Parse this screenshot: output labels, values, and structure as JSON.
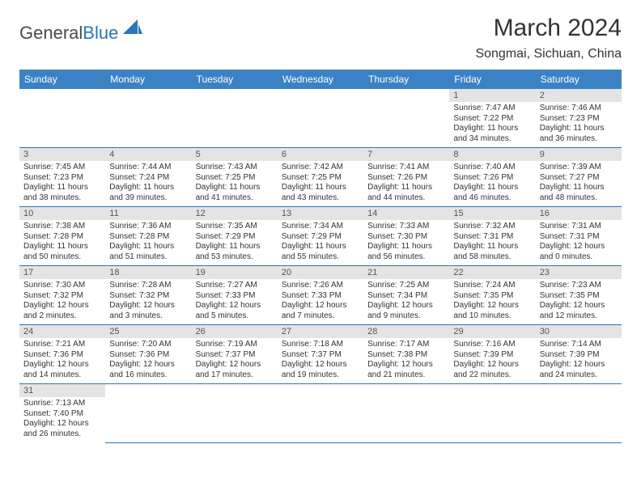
{
  "logo": {
    "part1": "General",
    "part2": "Blue",
    "shape_color": "#2a75bb"
  },
  "title": "March 2024",
  "location": "Songmai, Sichuan, China",
  "header_bg": "#3b82c4",
  "grid_line": "#2a75bb",
  "daynum_bg": "#e4e4e4",
  "weekdays": [
    "Sunday",
    "Monday",
    "Tuesday",
    "Wednesday",
    "Thursday",
    "Friday",
    "Saturday"
  ],
  "weeks": [
    [
      null,
      null,
      null,
      null,
      null,
      {
        "n": "1",
        "sr": "7:47 AM",
        "ss": "7:22 PM",
        "dl": "11 hours and 34 minutes."
      },
      {
        "n": "2",
        "sr": "7:46 AM",
        "ss": "7:23 PM",
        "dl": "11 hours and 36 minutes."
      }
    ],
    [
      {
        "n": "3",
        "sr": "7:45 AM",
        "ss": "7:23 PM",
        "dl": "11 hours and 38 minutes."
      },
      {
        "n": "4",
        "sr": "7:44 AM",
        "ss": "7:24 PM",
        "dl": "11 hours and 39 minutes."
      },
      {
        "n": "5",
        "sr": "7:43 AM",
        "ss": "7:25 PM",
        "dl": "11 hours and 41 minutes."
      },
      {
        "n": "6",
        "sr": "7:42 AM",
        "ss": "7:25 PM",
        "dl": "11 hours and 43 minutes."
      },
      {
        "n": "7",
        "sr": "7:41 AM",
        "ss": "7:26 PM",
        "dl": "11 hours and 44 minutes."
      },
      {
        "n": "8",
        "sr": "7:40 AM",
        "ss": "7:26 PM",
        "dl": "11 hours and 46 minutes."
      },
      {
        "n": "9",
        "sr": "7:39 AM",
        "ss": "7:27 PM",
        "dl": "11 hours and 48 minutes."
      }
    ],
    [
      {
        "n": "10",
        "sr": "7:38 AM",
        "ss": "7:28 PM",
        "dl": "11 hours and 50 minutes."
      },
      {
        "n": "11",
        "sr": "7:36 AM",
        "ss": "7:28 PM",
        "dl": "11 hours and 51 minutes."
      },
      {
        "n": "12",
        "sr": "7:35 AM",
        "ss": "7:29 PM",
        "dl": "11 hours and 53 minutes."
      },
      {
        "n": "13",
        "sr": "7:34 AM",
        "ss": "7:29 PM",
        "dl": "11 hours and 55 minutes."
      },
      {
        "n": "14",
        "sr": "7:33 AM",
        "ss": "7:30 PM",
        "dl": "11 hours and 56 minutes."
      },
      {
        "n": "15",
        "sr": "7:32 AM",
        "ss": "7:31 PM",
        "dl": "11 hours and 58 minutes."
      },
      {
        "n": "16",
        "sr": "7:31 AM",
        "ss": "7:31 PM",
        "dl": "12 hours and 0 minutes."
      }
    ],
    [
      {
        "n": "17",
        "sr": "7:30 AM",
        "ss": "7:32 PM",
        "dl": "12 hours and 2 minutes."
      },
      {
        "n": "18",
        "sr": "7:28 AM",
        "ss": "7:32 PM",
        "dl": "12 hours and 3 minutes."
      },
      {
        "n": "19",
        "sr": "7:27 AM",
        "ss": "7:33 PM",
        "dl": "12 hours and 5 minutes."
      },
      {
        "n": "20",
        "sr": "7:26 AM",
        "ss": "7:33 PM",
        "dl": "12 hours and 7 minutes."
      },
      {
        "n": "21",
        "sr": "7:25 AM",
        "ss": "7:34 PM",
        "dl": "12 hours and 9 minutes."
      },
      {
        "n": "22",
        "sr": "7:24 AM",
        "ss": "7:35 PM",
        "dl": "12 hours and 10 minutes."
      },
      {
        "n": "23",
        "sr": "7:23 AM",
        "ss": "7:35 PM",
        "dl": "12 hours and 12 minutes."
      }
    ],
    [
      {
        "n": "24",
        "sr": "7:21 AM",
        "ss": "7:36 PM",
        "dl": "12 hours and 14 minutes."
      },
      {
        "n": "25",
        "sr": "7:20 AM",
        "ss": "7:36 PM",
        "dl": "12 hours and 16 minutes."
      },
      {
        "n": "26",
        "sr": "7:19 AM",
        "ss": "7:37 PM",
        "dl": "12 hours and 17 minutes."
      },
      {
        "n": "27",
        "sr": "7:18 AM",
        "ss": "7:37 PM",
        "dl": "12 hours and 19 minutes."
      },
      {
        "n": "28",
        "sr": "7:17 AM",
        "ss": "7:38 PM",
        "dl": "12 hours and 21 minutes."
      },
      {
        "n": "29",
        "sr": "7:16 AM",
        "ss": "7:39 PM",
        "dl": "12 hours and 22 minutes."
      },
      {
        "n": "30",
        "sr": "7:14 AM",
        "ss": "7:39 PM",
        "dl": "12 hours and 24 minutes."
      }
    ],
    [
      {
        "n": "31",
        "sr": "7:13 AM",
        "ss": "7:40 PM",
        "dl": "12 hours and 26 minutes."
      },
      null,
      null,
      null,
      null,
      null,
      null
    ]
  ],
  "labels": {
    "sunrise": "Sunrise: ",
    "sunset": "Sunset: ",
    "daylight": "Daylight: "
  }
}
